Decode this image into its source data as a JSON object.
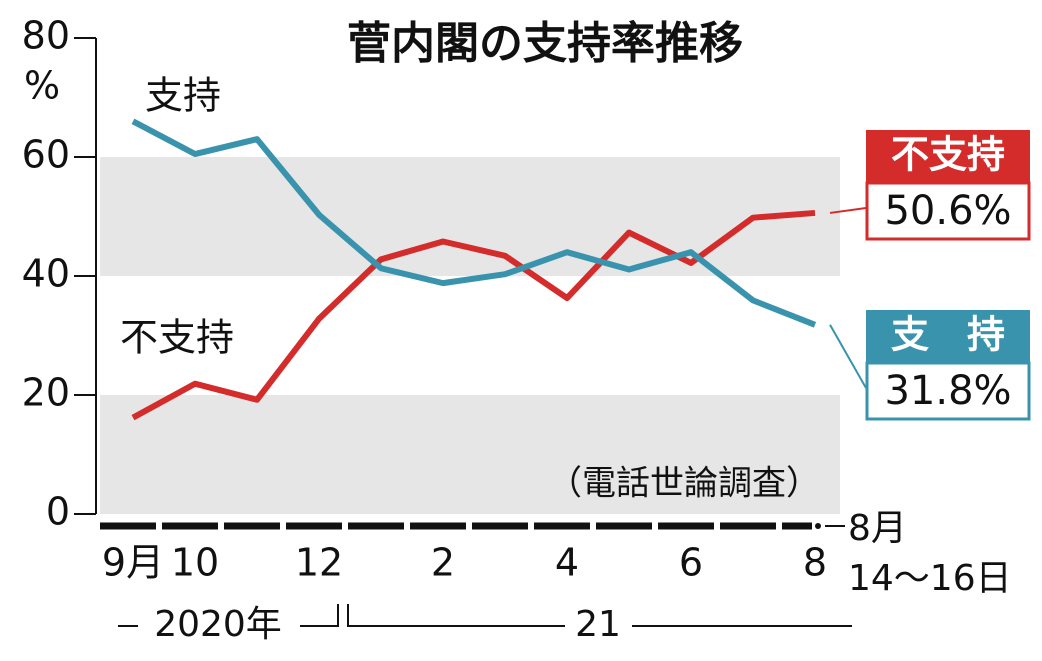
{
  "chart_data": {
    "type": "line",
    "title": "菅内閣の支持率推移",
    "y_unit": "%",
    "note": "（電話世論調査）",
    "categories": [
      "9月",
      "10",
      null,
      "12",
      null,
      "2",
      null,
      "4",
      null,
      "6",
      null,
      "8"
    ],
    "last_category_note": [
      "8月",
      "14〜16日"
    ],
    "years": [
      "2020年",
      "21"
    ],
    "ylim": [
      0,
      80
    ],
    "yticks": [
      0,
      20,
      40,
      60,
      80
    ],
    "shaded_bands": [
      [
        0,
        20
      ],
      [
        40,
        60
      ]
    ],
    "series": [
      {
        "name": "不支持",
        "label": "不支持",
        "color": "#d42b2b",
        "values": [
          16.2,
          21.9,
          19.2,
          32.8,
          42.8,
          45.8,
          43.4,
          36.3,
          47.3,
          42.2,
          49.8,
          50.6
        ],
        "value_labels": [
          null,
          null,
          null,
          null,
          null,
          null,
          null,
          null,
          null,
          null,
          null,
          "50.6%"
        ]
      },
      {
        "name": "支持",
        "label": "支　持",
        "color": "#3a93ad",
        "values": [
          66.0,
          60.5,
          63.0,
          50.3,
          41.3,
          38.8,
          40.3,
          44.0,
          41.1,
          44.0,
          35.9,
          31.8
        ],
        "value_labels": [
          null,
          null,
          null,
          null,
          null,
          null,
          null,
          null,
          null,
          null,
          null,
          "31.8%"
        ]
      }
    ]
  }
}
